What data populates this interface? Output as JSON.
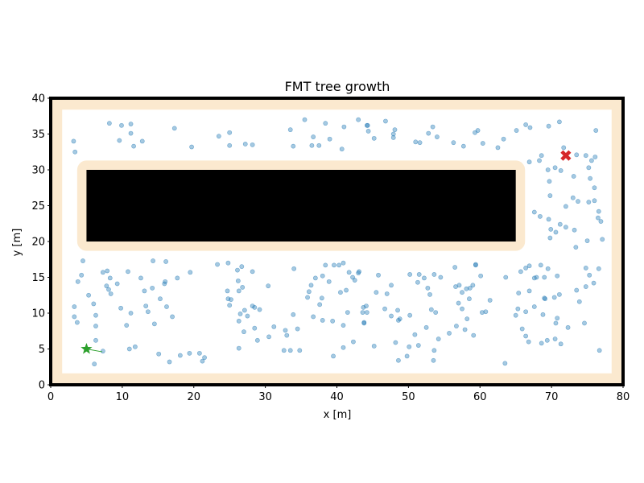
{
  "chart_data": {
    "type": "scatter",
    "title": "FMT tree growth",
    "xlabel": "x [m]",
    "ylabel": "y [m]",
    "xlim": [
      0,
      80
    ],
    "ylim": [
      0,
      40
    ],
    "xticks": [
      0,
      10,
      20,
      30,
      40,
      50,
      60,
      70,
      80
    ],
    "yticks": [
      0,
      5,
      10,
      15,
      20,
      25,
      30,
      35,
      40
    ],
    "grid": false,
    "colors": {
      "samples": "#1f77b4",
      "inflation": "#fbe9cf",
      "obstacle": "#000000",
      "wall": "#000000",
      "start": "#2ca02c",
      "goal": "#d62728",
      "tree_edge": "#2ca02c"
    },
    "environment": {
      "free_region": {
        "x": [
          1.6,
          78.4
        ],
        "y": [
          1.6,
          38.4
        ]
      },
      "obstacle": {
        "x": [
          5,
          65
        ],
        "y": [
          20,
          30
        ]
      },
      "obstacle_inflation_margin": 1.3
    },
    "start": {
      "x": 5,
      "y": 5,
      "marker": "star"
    },
    "goal": {
      "x": 72,
      "y": 32,
      "marker": "x"
    },
    "tree_edges": [
      {
        "from": [
          5,
          5
        ],
        "to": [
          7.2,
          4.6
        ]
      }
    ],
    "samples": {
      "marker": "circle",
      "points": [
        [
          3.2,
          34.0
        ],
        [
          3.4,
          32.5
        ],
        [
          8.2,
          36.5
        ],
        [
          9.6,
          34.1
        ],
        [
          9.9,
          36.2
        ],
        [
          11.2,
          36.4
        ],
        [
          11.2,
          35.1
        ],
        [
          11.6,
          33.3
        ],
        [
          12.8,
          34.0
        ],
        [
          17.3,
          35.8
        ],
        [
          19.7,
          33.2
        ],
        [
          23.5,
          34.7
        ],
        [
          25.0,
          35.2
        ],
        [
          25.0,
          33.4
        ],
        [
          27.2,
          33.6
        ],
        [
          28.2,
          33.5
        ],
        [
          33.5,
          35.6
        ],
        [
          33.9,
          33.3
        ],
        [
          35.5,
          37.0
        ],
        [
          36.5,
          33.4
        ],
        [
          36.7,
          34.6
        ],
        [
          37.5,
          33.4
        ],
        [
          38.4,
          36.5
        ],
        [
          39.0,
          34.3
        ],
        [
          40.7,
          32.9
        ],
        [
          41.0,
          36.0
        ],
        [
          43.0,
          37.0
        ],
        [
          44.2,
          36.2
        ],
        [
          44.3,
          36.2
        ],
        [
          44.4,
          35.4
        ],
        [
          45.2,
          34.4
        ],
        [
          46.8,
          36.8
        ],
        [
          47.9,
          35.0
        ],
        [
          48.1,
          35.6
        ],
        [
          47.9,
          34.5
        ],
        [
          51.0,
          33.9
        ],
        [
          51.6,
          33.8
        ],
        [
          52.8,
          35.1
        ],
        [
          53.4,
          36.0
        ],
        [
          54.0,
          34.6
        ],
        [
          56.3,
          33.8
        ],
        [
          57.7,
          33.3
        ],
        [
          59.3,
          35.2
        ],
        [
          59.7,
          35.5
        ],
        [
          60.4,
          33.7
        ],
        [
          62.5,
          33.1
        ],
        [
          63.3,
          34.3
        ],
        [
          65.1,
          35.5
        ],
        [
          66.4,
          36.3
        ],
        [
          67.0,
          35.9
        ],
        [
          68.3,
          31.3
        ],
        [
          68.6,
          32.0
        ],
        [
          69.6,
          36.1
        ],
        [
          71.1,
          36.7
        ],
        [
          76.2,
          35.5
        ],
        [
          66.9,
          31.1
        ],
        [
          69.5,
          30.0
        ],
        [
          70.5,
          30.3
        ],
        [
          71.3,
          29.9
        ],
        [
          71.7,
          33.1
        ],
        [
          73.5,
          32.1
        ],
        [
          74.8,
          32.0
        ],
        [
          75.2,
          30.3
        ],
        [
          75.6,
          31.3
        ],
        [
          76.1,
          31.8
        ],
        [
          73.1,
          29.1
        ],
        [
          75.4,
          28.8
        ],
        [
          76.0,
          27.5
        ],
        [
          69.7,
          28.4
        ],
        [
          69.8,
          26.4
        ],
        [
          73.0,
          26.1
        ],
        [
          73.7,
          25.6
        ],
        [
          75.2,
          25.5
        ],
        [
          76.0,
          25.7
        ],
        [
          72.0,
          24.9
        ],
        [
          76.6,
          24.2
        ],
        [
          76.5,
          23.3
        ],
        [
          76.9,
          22.8
        ],
        [
          67.6,
          24.1
        ],
        [
          68.4,
          23.5
        ],
        [
          69.6,
          23.1
        ],
        [
          71.2,
          22.4
        ],
        [
          69.9,
          21.7
        ],
        [
          70.6,
          21.3
        ],
        [
          72.0,
          22.0
        ],
        [
          73.2,
          21.6
        ],
        [
          75.0,
          20.1
        ],
        [
          73.4,
          19.2
        ],
        [
          77.1,
          20.3
        ],
        [
          69.8,
          20.5
        ],
        [
          4.5,
          17.3
        ],
        [
          4.3,
          15.3
        ],
        [
          3.8,
          14.4
        ],
        [
          5.3,
          12.5
        ],
        [
          6.0,
          11.3
        ],
        [
          3.3,
          10.9
        ],
        [
          3.3,
          9.5
        ],
        [
          3.7,
          8.7
        ],
        [
          7.3,
          15.7
        ],
        [
          7.9,
          15.9
        ],
        [
          8.3,
          14.9
        ],
        [
          7.8,
          13.8
        ],
        [
          8.1,
          13.3
        ],
        [
          8.4,
          12.7
        ],
        [
          9.3,
          14.1
        ],
        [
          9.8,
          10.7
        ],
        [
          10.8,
          15.8
        ],
        [
          10.6,
          8.3
        ],
        [
          11.2,
          10.0
        ],
        [
          12.6,
          14.9
        ],
        [
          13.1,
          13.1
        ],
        [
          13.3,
          11.0
        ],
        [
          13.6,
          10.2
        ],
        [
          14.3,
          17.3
        ],
        [
          14.2,
          13.5
        ],
        [
          15.3,
          12.0
        ],
        [
          15.9,
          14.1
        ],
        [
          16.0,
          14.4
        ],
        [
          16.1,
          17.2
        ],
        [
          16.2,
          10.9
        ],
        [
          17.0,
          9.5
        ],
        [
          17.7,
          14.9
        ],
        [
          19.5,
          15.7
        ],
        [
          23.3,
          16.8
        ],
        [
          24.8,
          17.0
        ],
        [
          26.1,
          16.0
        ],
        [
          26.7,
          16.5
        ],
        [
          28.2,
          15.8
        ],
        [
          26.2,
          14.5
        ],
        [
          24.7,
          13.1
        ],
        [
          26.3,
          13.1
        ],
        [
          26.8,
          13.6
        ],
        [
          24.8,
          12.0
        ],
        [
          25.2,
          11.9
        ],
        [
          25.0,
          11.1
        ],
        [
          28.2,
          11.0
        ],
        [
          27.1,
          10.4
        ],
        [
          28.5,
          10.8
        ],
        [
          29.2,
          10.5
        ],
        [
          26.5,
          9.9
        ],
        [
          27.5,
          9.6
        ],
        [
          26.3,
          8.9
        ],
        [
          30.4,
          13.8
        ],
        [
          34.0,
          16.2
        ],
        [
          36.4,
          13.9
        ],
        [
          36.1,
          13.0
        ],
        [
          35.9,
          12.2
        ],
        [
          37.0,
          14.9
        ],
        [
          38.0,
          15.2
        ],
        [
          38.4,
          16.7
        ],
        [
          38.9,
          14.4
        ],
        [
          37.6,
          11.2
        ],
        [
          37.9,
          12.1
        ],
        [
          39.6,
          16.7
        ],
        [
          40.3,
          16.7
        ],
        [
          40.9,
          17.0
        ],
        [
          40.5,
          12.9
        ],
        [
          41.3,
          13.2
        ],
        [
          41.7,
          15.7
        ],
        [
          42.2,
          15.0
        ],
        [
          43.0,
          15.6
        ],
        [
          43.1,
          15.8
        ],
        [
          42.5,
          14.6
        ],
        [
          44.1,
          11.0
        ],
        [
          43.7,
          10.8
        ],
        [
          43.6,
          10.1
        ],
        [
          44.2,
          10.1
        ],
        [
          45.5,
          12.9
        ],
        [
          45.8,
          15.3
        ],
        [
          47.0,
          12.7
        ],
        [
          47.6,
          13.9
        ],
        [
          48.5,
          10.4
        ],
        [
          48.6,
          9.0
        ],
        [
          48.8,
          9.2
        ],
        [
          50.2,
          15.4
        ],
        [
          51.5,
          15.4
        ],
        [
          51.3,
          14.3
        ],
        [
          52.2,
          14.9
        ],
        [
          53.6,
          15.4
        ],
        [
          52.7,
          13.5
        ],
        [
          53.0,
          12.6
        ],
        [
          54.5,
          15.0
        ],
        [
          56.5,
          16.4
        ],
        [
          56.6,
          13.7
        ],
        [
          57.1,
          13.9
        ],
        [
          57.5,
          12.9
        ],
        [
          58.1,
          13.4
        ],
        [
          58.6,
          13.5
        ],
        [
          59.4,
          16.7
        ],
        [
          59.4,
          16.8
        ],
        [
          60.1,
          15.2
        ],
        [
          59.0,
          13.9
        ],
        [
          57.0,
          11.4
        ],
        [
          57.5,
          10.6
        ],
        [
          58.5,
          12.0
        ],
        [
          60.3,
          10.1
        ],
        [
          60.8,
          10.2
        ],
        [
          61.4,
          11.8
        ],
        [
          63.6,
          15.0
        ],
        [
          65.7,
          15.8
        ],
        [
          66.4,
          16.3
        ],
        [
          66.9,
          16.6
        ],
        [
          67.6,
          14.9
        ],
        [
          67.9,
          15.0
        ],
        [
          68.5,
          16.7
        ],
        [
          69.5,
          16.2
        ],
        [
          70.8,
          15.2
        ],
        [
          69.0,
          15.0
        ],
        [
          65.4,
          12.8
        ],
        [
          66.9,
          13.1
        ],
        [
          69.1,
          12.0
        ],
        [
          70.4,
          12.2
        ],
        [
          71.1,
          12.6
        ],
        [
          73.5,
          13.2
        ],
        [
          74.8,
          13.7
        ],
        [
          74.8,
          16.3
        ],
        [
          75.3,
          15.3
        ],
        [
          76.6,
          16.2
        ],
        [
          75.9,
          14.2
        ],
        [
          73.9,
          11.6
        ],
        [
          65.3,
          10.6
        ],
        [
          66.4,
          10.2
        ],
        [
          67.6,
          10.9
        ],
        [
          65.0,
          9.7
        ],
        [
          68.8,
          9.8
        ],
        [
          69.0,
          12.1
        ],
        [
          70.8,
          9.3
        ],
        [
          70.6,
          8.6
        ],
        [
          72.3,
          8.0
        ],
        [
          74.6,
          8.6
        ],
        [
          65.9,
          7.8
        ],
        [
          66.4,
          6.8
        ],
        [
          66.8,
          6.0
        ],
        [
          68.6,
          5.8
        ],
        [
          69.4,
          6.2
        ],
        [
          70.5,
          6.4
        ],
        [
          71.3,
          5.7
        ],
        [
          76.7,
          4.8
        ],
        [
          7.3,
          4.7
        ],
        [
          6.1,
          2.9
        ],
        [
          6.3,
          6.2
        ],
        [
          6.3,
          8.2
        ],
        [
          6.3,
          9.7
        ],
        [
          11.0,
          5.0
        ],
        [
          11.8,
          5.3
        ],
        [
          14.5,
          8.5
        ],
        [
          15.1,
          4.3
        ],
        [
          16.6,
          3.2
        ],
        [
          18.1,
          4.1
        ],
        [
          19.4,
          4.4
        ],
        [
          20.8,
          4.4
        ],
        [
          21.2,
          3.3
        ],
        [
          21.5,
          3.8
        ],
        [
          26.3,
          5.1
        ],
        [
          27.0,
          7.4
        ],
        [
          28.5,
          7.9
        ],
        [
          28.9,
          6.2
        ],
        [
          30.5,
          6.7
        ],
        [
          31.2,
          8.1
        ],
        [
          32.6,
          4.8
        ],
        [
          32.8,
          7.6
        ],
        [
          33.0,
          6.9
        ],
        [
          33.5,
          4.8
        ],
        [
          33.9,
          9.8
        ],
        [
          34.5,
          7.8
        ],
        [
          34.8,
          4.8
        ],
        [
          36.7,
          9.5
        ],
        [
          38.0,
          9.0
        ],
        [
          39.4,
          8.9
        ],
        [
          39.5,
          4.0
        ],
        [
          40.9,
          8.3
        ],
        [
          40.9,
          5.2
        ],
        [
          41.5,
          10.1
        ],
        [
          42.3,
          6.0
        ],
        [
          43.8,
          8.7
        ],
        [
          43.8,
          8.6
        ],
        [
          45.2,
          5.4
        ],
        [
          46.7,
          10.6
        ],
        [
          47.6,
          9.6
        ],
        [
          48.2,
          5.9
        ],
        [
          48.6,
          3.4
        ],
        [
          49.8,
          4.0
        ],
        [
          50.1,
          5.3
        ],
        [
          50.2,
          9.7
        ],
        [
          50.9,
          7.0
        ],
        [
          51.4,
          5.5
        ],
        [
          52.5,
          8.0
        ],
        [
          53.2,
          10.5
        ],
        [
          53.6,
          4.8
        ],
        [
          53.5,
          3.4
        ],
        [
          54.2,
          6.4
        ],
        [
          55.7,
          7.2
        ],
        [
          56.7,
          8.2
        ],
        [
          57.9,
          7.7
        ],
        [
          58.2,
          9.2
        ],
        [
          59.1,
          6.9
        ],
        [
          63.5,
          3.0
        ],
        [
          53.8,
          10.1
        ]
      ]
    }
  }
}
